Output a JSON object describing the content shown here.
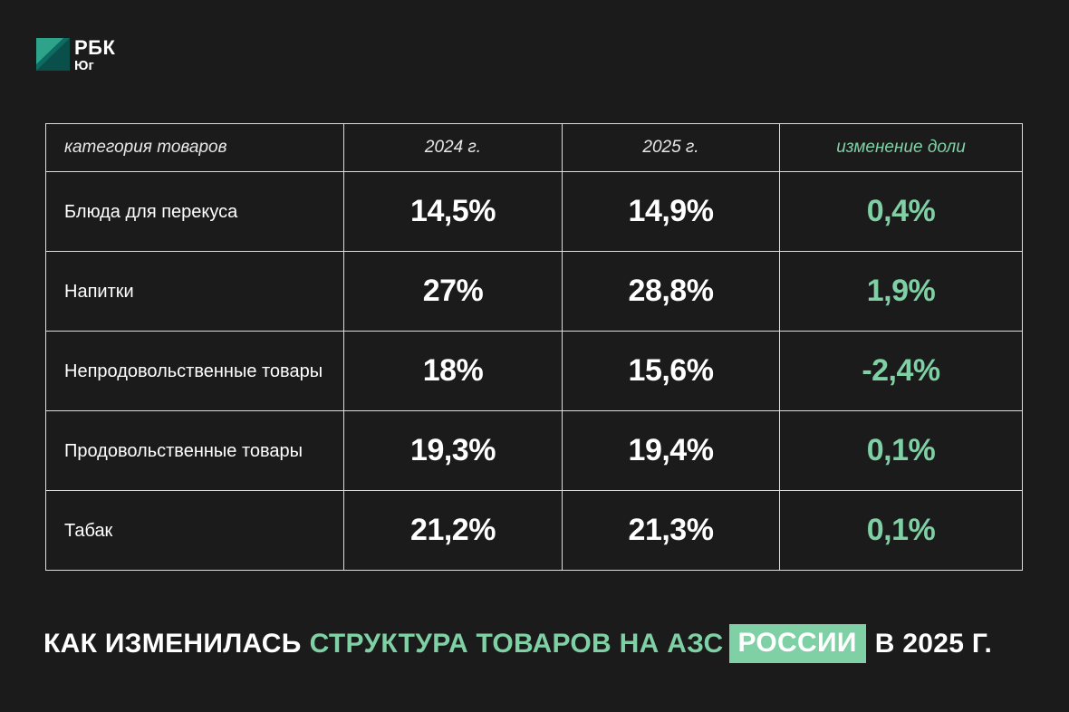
{
  "logo": {
    "brand": "РБК",
    "region": "Юг"
  },
  "colors": {
    "background": "#1b1b1b",
    "accent": "#7fd0a5",
    "text": "#ffffff",
    "grid": "#dcdcdc"
  },
  "chart_data": {
    "type": "table",
    "columns": [
      "категория товаров",
      "2024 г.",
      "2025 г.",
      "изменение доли"
    ],
    "rows": [
      {
        "category": "Блюда для перекуса",
        "y2024": "14,5%",
        "y2025": "14,9%",
        "change": "0,4%"
      },
      {
        "category": "Напитки",
        "y2024": "27%",
        "y2025": "28,8%",
        "change": "1,9%"
      },
      {
        "category": "Непродовольственные товары",
        "y2024": "18%",
        "y2025": "15,6%",
        "change": "-2,4%"
      },
      {
        "category": "Продовольственные товары",
        "y2024": "19,3%",
        "y2025": "19,4%",
        "change": "0,1%"
      },
      {
        "category": "Табак",
        "y2024": "21,2%",
        "y2025": "21,3%",
        "change": "0,1%"
      }
    ],
    "title": {
      "part1": "КАК ИЗМЕНИЛАСЬ",
      "part2": "СТРУКТУРА ТОВАРОВ НА АЗС",
      "part3": "РОССИИ",
      "part4": "В 2025 Г."
    }
  }
}
